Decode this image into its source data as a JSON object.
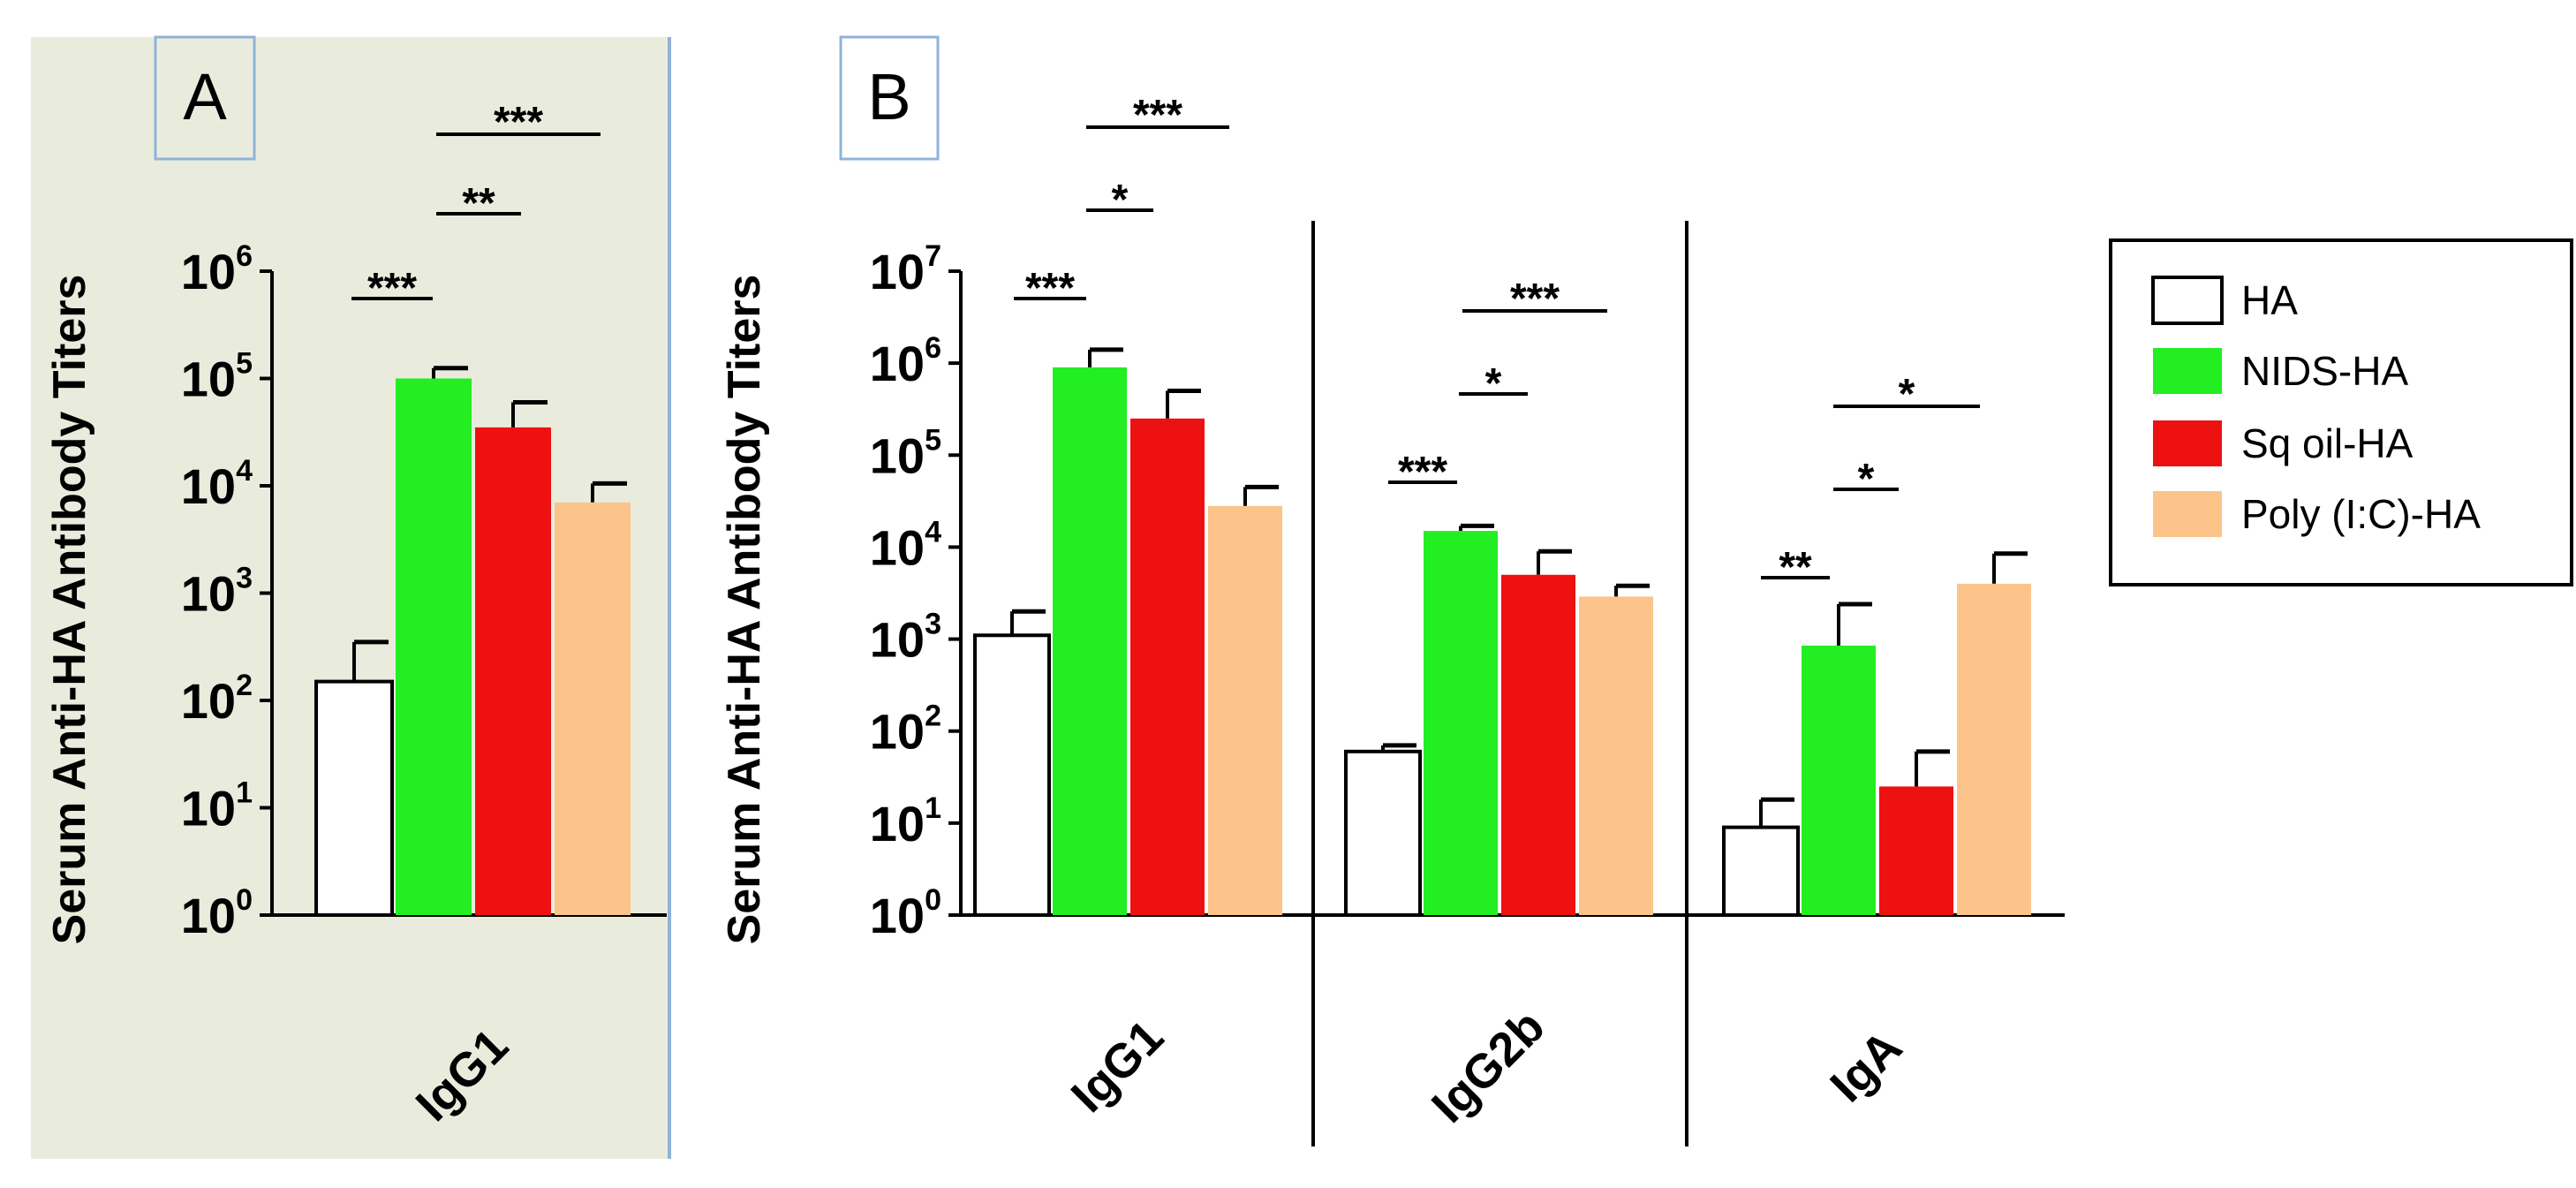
{
  "legend": [
    {
      "label": "HA",
      "color": "#ffffff"
    },
    {
      "label": "NIDS-HA",
      "color": "#22ee22"
    },
    {
      "label": "Sq oil-HA",
      "color": "#ee1111"
    },
    {
      "label": "Poly (I:C)-HA",
      "color": "#fcc48a"
    }
  ],
  "chart_data": [
    {
      "type": "bar",
      "panel_label": "A",
      "background": "#e9ecdc",
      "title": "",
      "ylabel": "Serum Anti-HA Antibody Titers",
      "yscale": "log10",
      "ylim": [
        1,
        1000000
      ],
      "yticks": [
        {
          "base": "10",
          "exp": "0"
        },
        {
          "base": "10",
          "exp": "1"
        },
        {
          "base": "10",
          "exp": "2"
        },
        {
          "base": "10",
          "exp": "3"
        },
        {
          "base": "10",
          "exp": "4"
        },
        {
          "base": "10",
          "exp": "5"
        },
        {
          "base": "10",
          "exp": "6"
        }
      ],
      "categories": [
        "IgG1"
      ],
      "series": [
        {
          "name": "HA",
          "values": [
            150
          ],
          "errors": [
            350
          ]
        },
        {
          "name": "NIDS-HA",
          "values": [
            100000
          ],
          "errors": [
            125000
          ]
        },
        {
          "name": "Sq oil-HA",
          "values": [
            35000
          ],
          "errors": [
            60000
          ]
        },
        {
          "name": "Poly (I:C)-HA",
          "values": [
            7000
          ],
          "errors": [
            10500
          ]
        }
      ],
      "significance": [
        {
          "category": "IgG1",
          "from": 0,
          "to": 1,
          "label": "***"
        },
        {
          "category": "IgG1",
          "from": 1,
          "to": 2,
          "label": "**"
        },
        {
          "category": "IgG1",
          "from": 1,
          "to": 3,
          "label": "***"
        }
      ]
    },
    {
      "type": "bar",
      "panel_label": "B",
      "background": "#ffffff",
      "title": "",
      "ylabel": "Serum Anti-HA Antibody Titers",
      "yscale": "log10",
      "ylim": [
        1,
        10000000
      ],
      "yticks": [
        {
          "base": "10",
          "exp": "0"
        },
        {
          "base": "10",
          "exp": "1"
        },
        {
          "base": "10",
          "exp": "2"
        },
        {
          "base": "10",
          "exp": "3"
        },
        {
          "base": "10",
          "exp": "4"
        },
        {
          "base": "10",
          "exp": "5"
        },
        {
          "base": "10",
          "exp": "6"
        },
        {
          "base": "10",
          "exp": "7"
        }
      ],
      "categories": [
        "IgG1",
        "IgG2b",
        "IgA"
      ],
      "series": [
        {
          "name": "HA",
          "values": [
            1100,
            60,
            9
          ],
          "errors": [
            2000,
            70,
            18
          ]
        },
        {
          "name": "NIDS-HA",
          "values": [
            900000,
            15000,
            850
          ],
          "errors": [
            1400000,
            17000,
            2400
          ]
        },
        {
          "name": "Sq oil-HA",
          "values": [
            250000,
            5000,
            25
          ],
          "errors": [
            500000,
            9000,
            60
          ]
        },
        {
          "name": "Poly (I:C)-HA",
          "values": [
            28000,
            2900,
            4000
          ],
          "errors": [
            45000,
            3800,
            8500
          ]
        }
      ],
      "significance": [
        {
          "category": "IgG1",
          "from": 0,
          "to": 1,
          "label": "***"
        },
        {
          "category": "IgG1",
          "from": 1,
          "to": 2,
          "label": "*"
        },
        {
          "category": "IgG1",
          "from": 1,
          "to": 3,
          "label": "***"
        },
        {
          "category": "IgG2b",
          "from": 0,
          "to": 1,
          "label": "***"
        },
        {
          "category": "IgG2b",
          "from": 1,
          "to": 2,
          "label": "*"
        },
        {
          "category": "IgG2b",
          "from": 1,
          "to": 3,
          "label": "***"
        },
        {
          "category": "IgA",
          "from": 0,
          "to": 1,
          "label": "**"
        },
        {
          "category": "IgA",
          "from": 1,
          "to": 2,
          "label": "*"
        },
        {
          "category": "IgA",
          "from": 1,
          "to": 3,
          "label": "*"
        }
      ]
    }
  ]
}
